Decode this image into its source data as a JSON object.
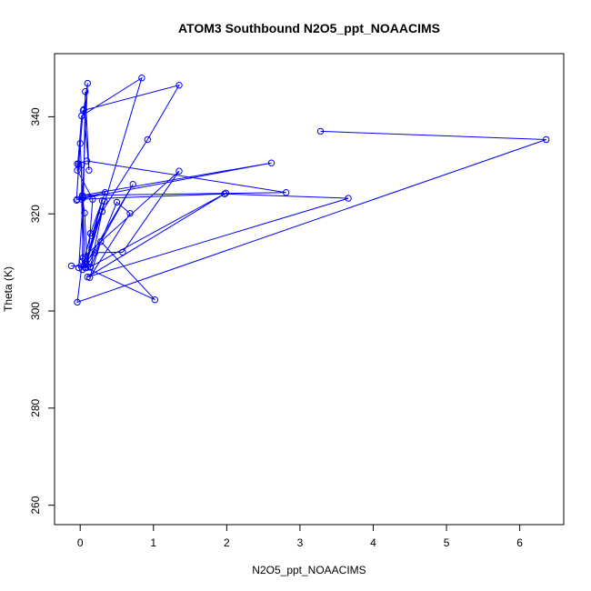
{
  "chart_data": {
    "type": "line",
    "title": "ATOM3 Southbound N2O5_ppt_NOAACIMS",
    "xlabel": "N2O5_ppt_NOAACIMS",
    "ylabel": "Theta (K)",
    "xlim": [
      -0.35,
      6.6
    ],
    "ylim": [
      256,
      353
    ],
    "x_ticks": [
      0,
      1,
      2,
      3,
      4,
      5,
      6
    ],
    "y_ticks": [
      260,
      280,
      300,
      320,
      340
    ],
    "grid": false,
    "marker": "open-circle",
    "colors": {
      "series": "#0000ff",
      "axes": "#000000"
    },
    "series": [
      {
        "points": [
          {
            "x": 3.28,
            "y": 337.0
          },
          {
            "x": 6.36,
            "y": 335.3
          },
          {
            "x": -0.04,
            "y": 301.8
          },
          {
            "x": 0.03,
            "y": 310.2
          },
          {
            "x": 0.07,
            "y": 345.2
          },
          {
            "x": 0.12,
            "y": 329.0
          },
          {
            "x": 0.05,
            "y": 341.5
          },
          {
            "x": 0.1,
            "y": 346.9
          },
          {
            "x": 0.03,
            "y": 323.5
          },
          {
            "x": 0.06,
            "y": 320.2
          },
          {
            "x": 0.1,
            "y": 309.0
          },
          {
            "x": 0.17,
            "y": 323.0
          },
          {
            "x": -0.04,
            "y": 329.0
          },
          {
            "x": 0.02,
            "y": 340.2
          },
          {
            "x": 0.84,
            "y": 348.0
          },
          {
            "x": 0.07,
            "y": 308.9
          },
          {
            "x": 0.0,
            "y": 334.5
          },
          {
            "x": -0.05,
            "y": 322.8
          },
          {
            "x": -0.02,
            "y": 330.3
          },
          {
            "x": 0.04,
            "y": 341.3
          },
          {
            "x": 1.35,
            "y": 346.5
          },
          {
            "x": 0.92,
            "y": 335.3
          },
          {
            "x": 0.3,
            "y": 320.5
          },
          {
            "x": 0.16,
            "y": 315.5
          },
          {
            "x": 0.3,
            "y": 322.7
          },
          {
            "x": 0.08,
            "y": 310.1
          },
          {
            "x": 0.33,
            "y": 322.6
          },
          {
            "x": 0.14,
            "y": 309.0
          },
          {
            "x": 0.5,
            "y": 322.4
          },
          {
            "x": 0.68,
            "y": 320.1
          },
          {
            "x": 0.13,
            "y": 306.9
          },
          {
            "x": 0.28,
            "y": 314.3
          },
          {
            "x": 1.02,
            "y": 302.3
          },
          {
            "x": 0.08,
            "y": 308.9
          },
          {
            "x": 0.72,
            "y": 326.1
          },
          {
            "x": 0.03,
            "y": 308.5
          },
          {
            "x": 0.14,
            "y": 316.0
          },
          {
            "x": 0.34,
            "y": 324.4
          },
          {
            "x": 0.04,
            "y": 323.3
          },
          {
            "x": -0.02,
            "y": 308.9
          },
          {
            "x": 0.2,
            "y": 312.0
          },
          {
            "x": 0.58,
            "y": 312.1
          },
          {
            "x": 1.35,
            "y": 328.8
          },
          {
            "x": 0.04,
            "y": 311.0
          },
          {
            "x": 0.02,
            "y": 323.0
          },
          {
            "x": 0.02,
            "y": 330.1
          },
          {
            "x": -0.04,
            "y": 330.3
          },
          {
            "x": 0.09,
            "y": 330.9
          },
          {
            "x": 2.81,
            "y": 324.4
          },
          {
            "x": 0.03,
            "y": 323.8
          },
          {
            "x": 2.61,
            "y": 330.5
          },
          {
            "x": -0.04,
            "y": 323.0
          },
          {
            "x": 1.97,
            "y": 324.1
          },
          {
            "x": 3.66,
            "y": 323.2
          },
          {
            "x": 0.1,
            "y": 307.0
          },
          {
            "x": 1.99,
            "y": 324.3
          },
          {
            "x": 0.14,
            "y": 309.1
          },
          {
            "x": -0.12,
            "y": 309.3
          }
        ]
      }
    ]
  }
}
